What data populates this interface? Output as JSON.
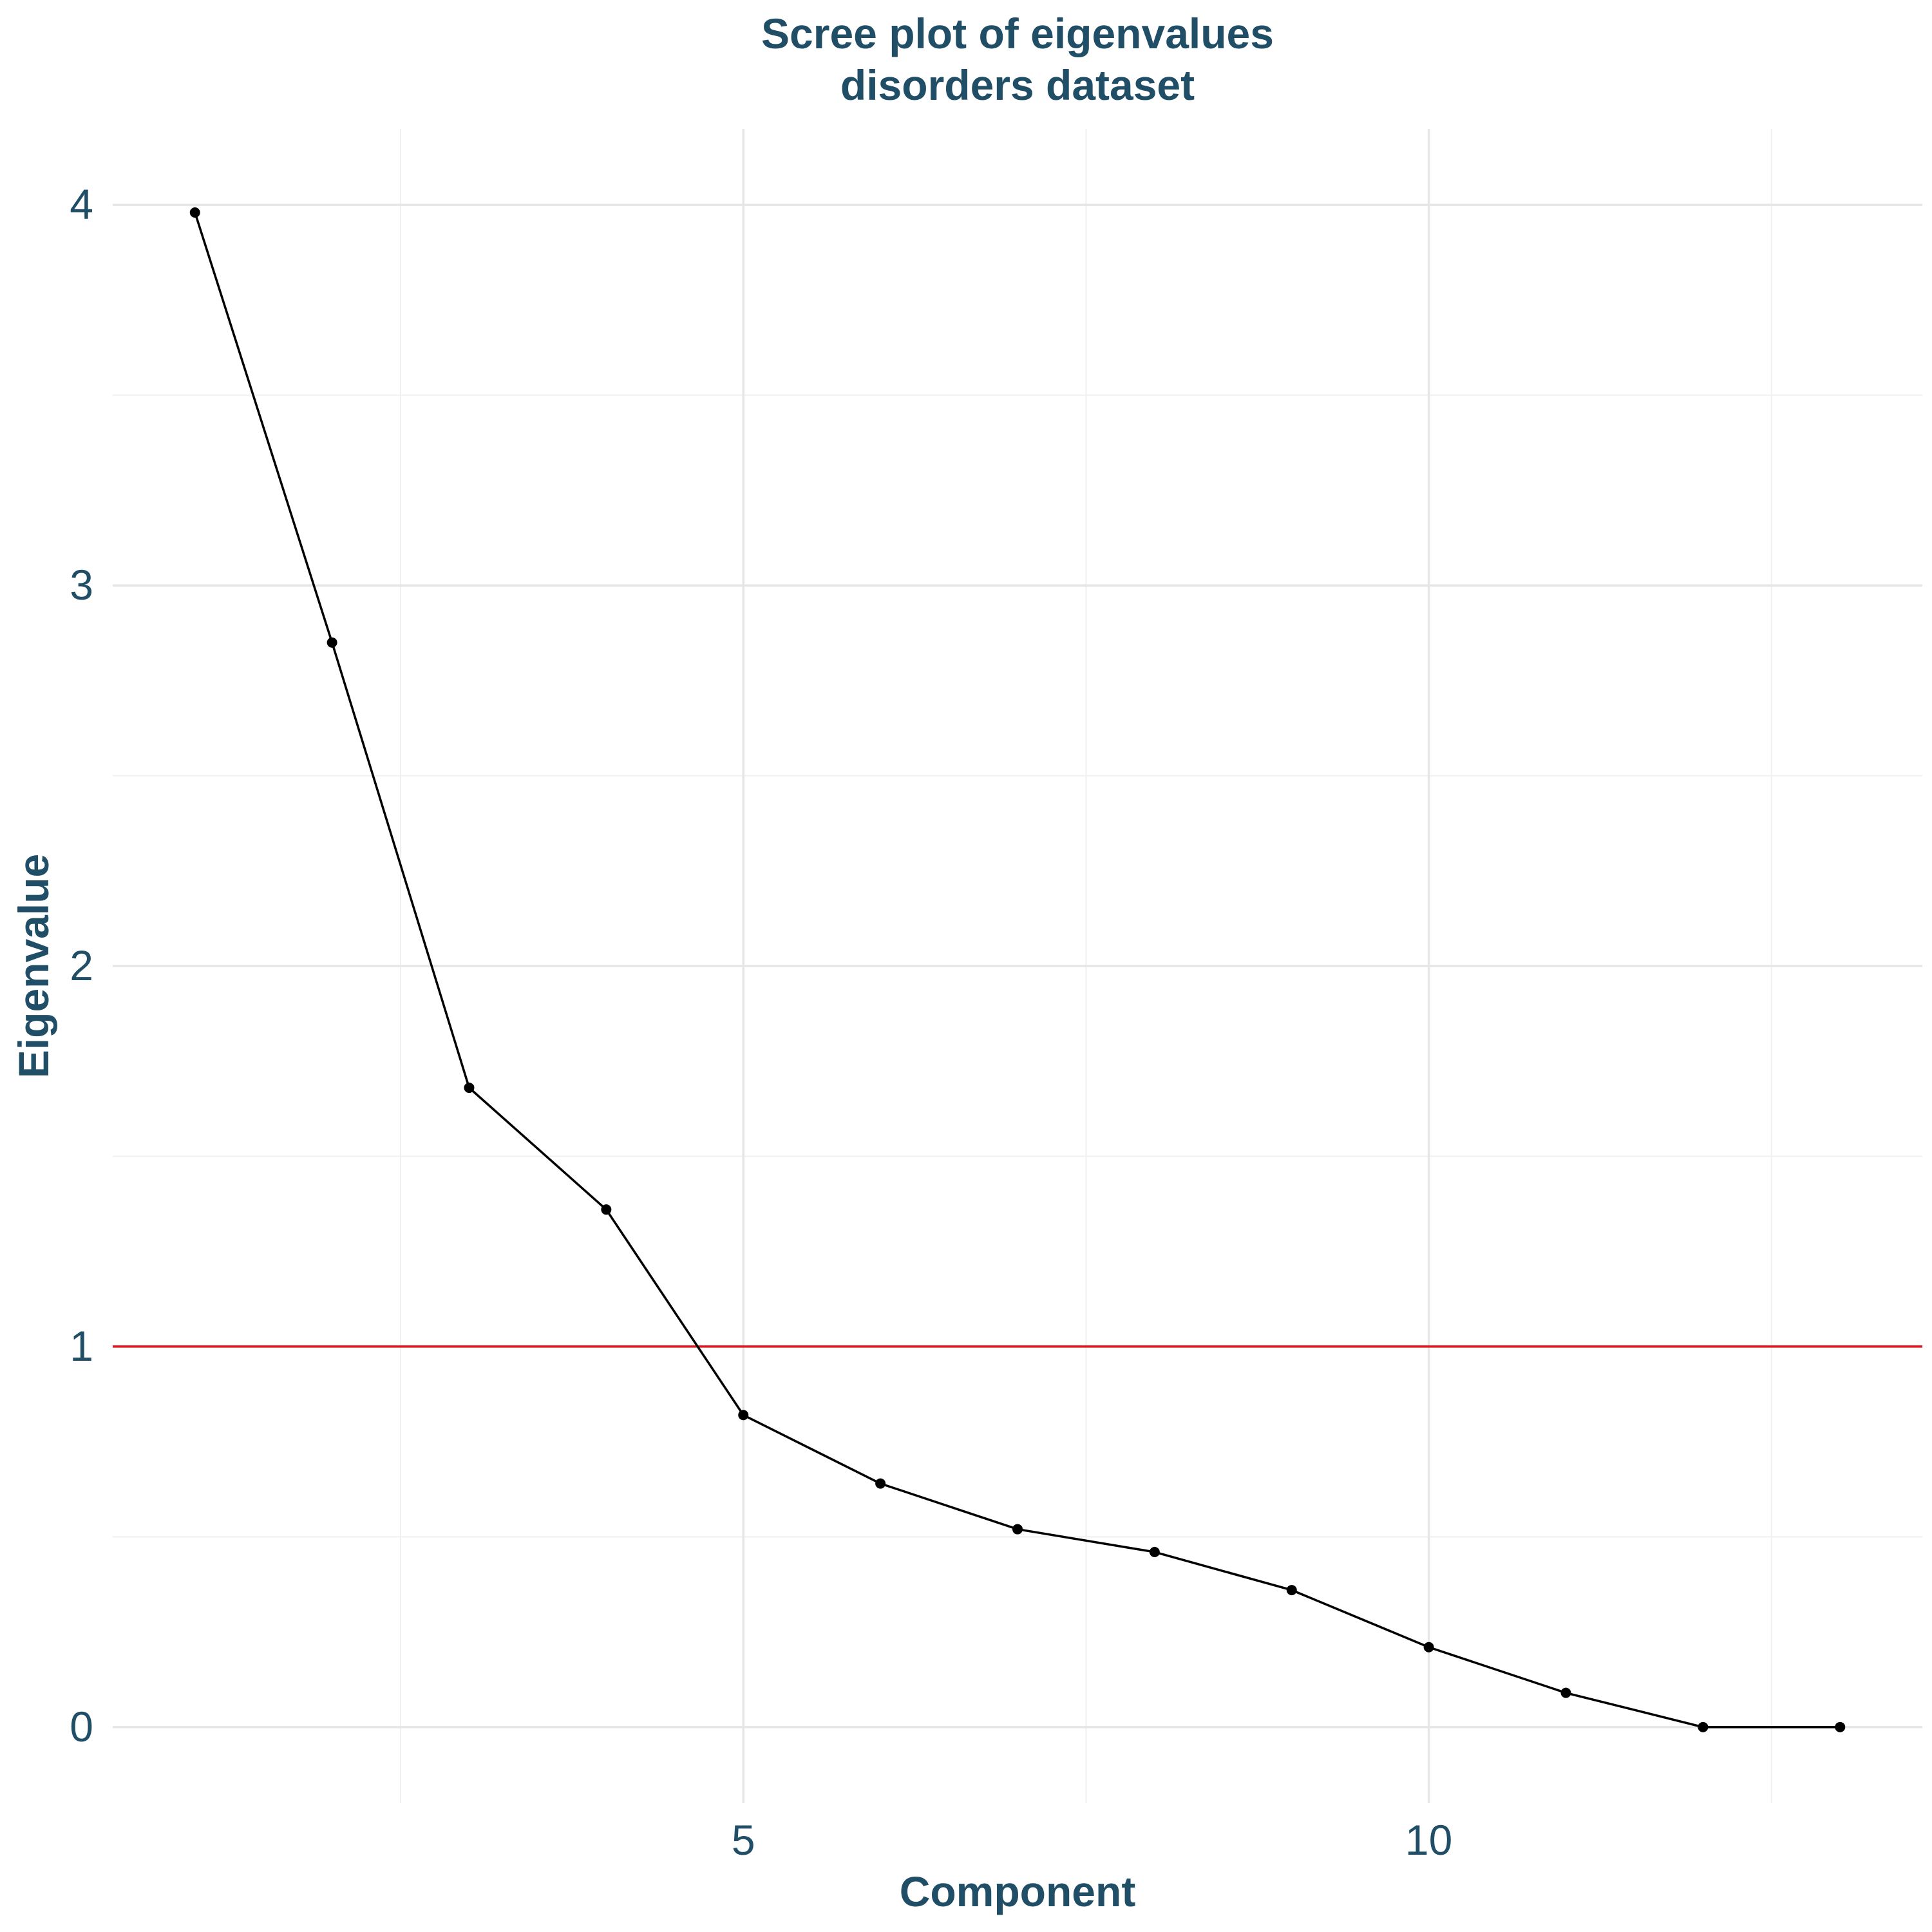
{
  "chart_data": {
    "type": "line",
    "title": "Scree plot of eigenvalues",
    "subtitle": "disorders dataset",
    "xlabel": "Component",
    "ylabel": "Eigenvalue",
    "x": [
      1,
      2,
      3,
      4,
      5,
      6,
      7,
      8,
      9,
      10,
      11,
      12,
      13
    ],
    "series": [
      {
        "values": [
          3.98,
          2.85,
          1.68,
          1.36,
          0.82,
          0.64,
          0.52,
          0.46,
          0.36,
          0.21,
          0.09,
          0.0,
          0.0
        ]
      }
    ],
    "reference_line": {
      "y": 1,
      "color": "#e8141f"
    },
    "xlim": [
      0.4,
      13.6
    ],
    "ylim": [
      -0.2,
      4.2
    ],
    "x_ticks": [
      {
        "value": 5,
        "label": "5"
      },
      {
        "value": 10,
        "label": "10"
      }
    ],
    "x_minor_ticks": [
      2.5,
      7.5,
      12.5
    ],
    "y_ticks": [
      {
        "value": 0,
        "label": "0"
      },
      {
        "value": 1,
        "label": "1"
      },
      {
        "value": 2,
        "label": "2"
      },
      {
        "value": 3,
        "label": "3"
      },
      {
        "value": 4,
        "label": "4"
      }
    ],
    "y_minor_ticks": [
      0.5,
      1.5,
      2.5,
      3.5
    ],
    "grid": true,
    "legend": "none",
    "colors": {
      "line": "#000000",
      "text": "#1f4e66",
      "grid": "#e6e6e6"
    }
  }
}
